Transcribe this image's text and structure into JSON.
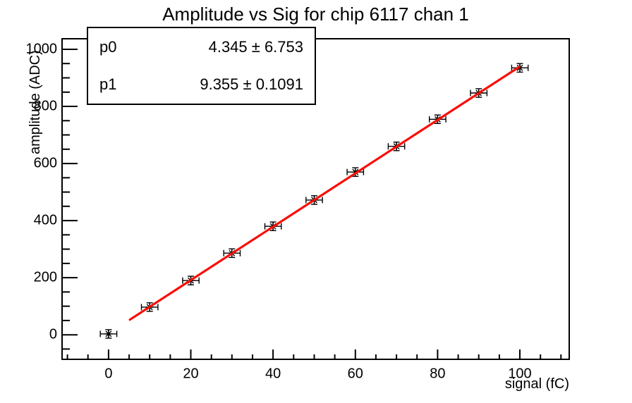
{
  "chart_data": {
    "type": "scatter",
    "title": "Amplitude vs Sig for chip 6117 chan 1",
    "xlabel": "signal (fC)",
    "ylabel": "amplitude (ADC)",
    "xlim": [
      -11.3,
      112.0
    ],
    "ylim": [
      -86,
      1037
    ],
    "grid": false,
    "legend": "none",
    "x_major_ticks": [
      0,
      20,
      40,
      60,
      80,
      100
    ],
    "x_minor_step": 5,
    "x_minor_range": [
      -10,
      110
    ],
    "y_major_ticks": [
      0,
      200,
      400,
      600,
      800,
      1000
    ],
    "y_minor_step": 50,
    "y_minor_range": [
      -50,
      1000
    ],
    "points": {
      "x": [
        0,
        10,
        20,
        30,
        40,
        50,
        60,
        70,
        80,
        90,
        100
      ],
      "y": [
        3,
        97,
        190,
        286,
        380,
        472,
        570,
        660,
        755,
        847,
        935
      ],
      "x_error": 2,
      "y_error": 15,
      "marker": "asterisk",
      "color": "#000000"
    },
    "fit": {
      "model": "p0 + p1*x",
      "p0": 4.345,
      "p1": 9.355,
      "x_start": 5.2,
      "x_end": 99.8,
      "color": "#fb0d06",
      "width": 3.2
    },
    "stats": {
      "rows": [
        {
          "param": "p0",
          "value": "4.345 ± 6.753"
        },
        {
          "param": "p1",
          "value": "9.355 ± 0.1091"
        }
      ]
    },
    "colors": {
      "frame": "#000000",
      "text": "#000000",
      "background": "#ffffff",
      "fit_line": "#fb0d06"
    }
  }
}
